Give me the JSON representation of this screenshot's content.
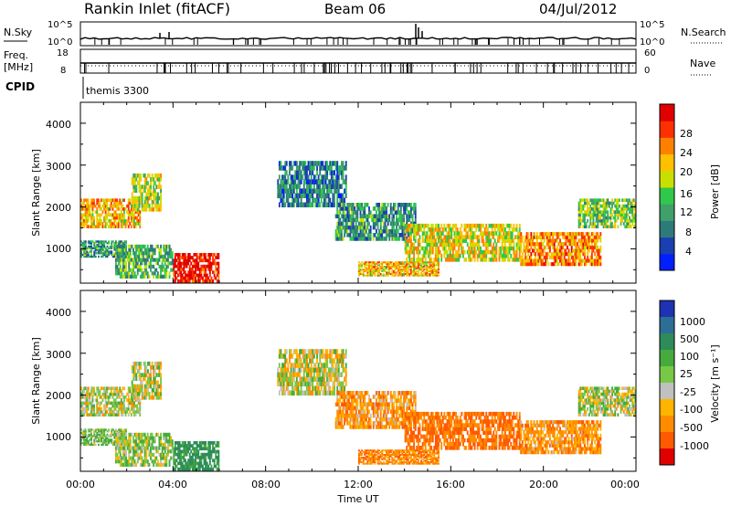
{
  "header": {
    "station": "Rankin Inlet (fitACF)",
    "beam": "Beam 06",
    "date": "04/Jul/2012"
  },
  "params": {
    "nsky_label": "N.Sky",
    "nsky_ticks": [
      "10^5",
      "10^0"
    ],
    "nsearch_label": "N.Search",
    "nsearch_ticks": [
      "10^5",
      "10^0"
    ],
    "freq_label_1": "Freq.",
    "freq_label_2": "[MHz]",
    "freq_ticks": [
      "18",
      "8"
    ],
    "nave_label": "Nave",
    "nave_ticks": [
      "60",
      "0"
    ],
    "cpid_label": "CPID",
    "cpid_value": "themis 3300"
  },
  "panels": {
    "ylabel": "Slant Range [km]",
    "yticks": [
      "4000",
      "3000",
      "2000",
      "1000"
    ],
    "xlabel": "Time UT",
    "xticks": [
      "00:00",
      "04:00",
      "08:00",
      "12:00",
      "16:00",
      "20:00",
      "00:00"
    ]
  },
  "colorbars": {
    "power": {
      "label": "Power [dB]",
      "ticks": [
        "28",
        "24",
        "20",
        "16",
        "12",
        "8",
        "4"
      ],
      "colors": [
        "#0020ff",
        "#1a3fb0",
        "#2d7a7a",
        "#3fa06a",
        "#2fc84a",
        "#c8e000",
        "#ffc000",
        "#ff8000",
        "#ff3000",
        "#e00000"
      ]
    },
    "velocity": {
      "label": "Velocity [m s⁻¹]",
      "ticks": [
        "1000",
        "500",
        "100",
        "25",
        "-25",
        "-100",
        "-500",
        "-1000"
      ],
      "colors": [
        "#1e32b4",
        "#2d6e96",
        "#2d8c5a",
        "#46aa3c",
        "#78c846",
        "#c0c0c0",
        "#ffb400",
        "#ff8c00",
        "#ff5a00",
        "#e00000"
      ]
    }
  },
  "chart_data": {
    "type": "heatmap",
    "title": "Rankin Inlet (fitACF)",
    "x": [
      "00:00",
      "04:00",
      "08:00",
      "12:00",
      "16:00",
      "20:00",
      "00:00"
    ],
    "xlabel": "Time UT",
    "ylabel": "Slant Range [km]",
    "ylim": [
      180,
      4500
    ],
    "xlim_hours": [
      0,
      24
    ],
    "power_range_db": [
      0,
      30
    ],
    "velocity_range_ms": [
      -1000,
      1000
    ],
    "regions": [
      {
        "t0": 0.0,
        "t1": 2.6,
        "r0": 1500,
        "r1": 2200,
        "power": 20,
        "velocity": 10
      },
      {
        "t0": 0.0,
        "t1": 2.0,
        "r0": 800,
        "r1": 1200,
        "power": 10,
        "velocity": 100
      },
      {
        "t0": 2.2,
        "t1": 3.5,
        "r0": 1900,
        "r1": 2800,
        "power": 16,
        "velocity": 10
      },
      {
        "t0": 4.0,
        "t1": 6.0,
        "r0": 200,
        "r1": 900,
        "power": 28,
        "velocity": 300
      },
      {
        "t0": 1.5,
        "t1": 4.0,
        "r0": 300,
        "r1": 1100,
        "power": 12,
        "velocity": 50
      },
      {
        "t0": 8.5,
        "t1": 11.5,
        "r0": 2000,
        "r1": 3100,
        "power": 8,
        "velocity": 10
      },
      {
        "t0": 11.0,
        "t1": 14.5,
        "r0": 1200,
        "r1": 2100,
        "power": 10,
        "velocity": -150
      },
      {
        "t0": 12.0,
        "t1": 15.5,
        "r0": 350,
        "r1": 700,
        "power": 20,
        "velocity": -200
      },
      {
        "t0": 14.0,
        "t1": 19.0,
        "r0": 700,
        "r1": 1600,
        "power": 18,
        "velocity": -250
      },
      {
        "t0": 19.0,
        "t1": 22.5,
        "r0": 600,
        "r1": 1400,
        "power": 22,
        "velocity": -150
      },
      {
        "t0": 21.5,
        "t1": 24.0,
        "r0": 1500,
        "r1": 2200,
        "power": 14,
        "velocity": 25
      }
    ]
  }
}
